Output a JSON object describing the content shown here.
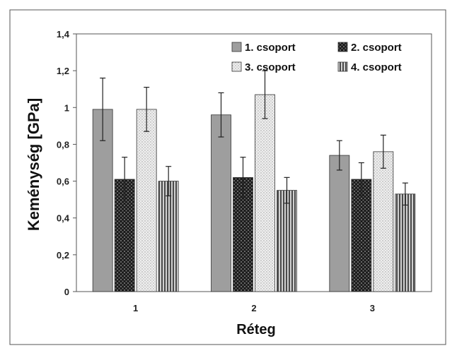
{
  "chart_data": {
    "type": "bar",
    "title": "",
    "xlabel": "Réteg",
    "ylabel": "Keménység [GPa]",
    "categories": [
      "1",
      "2",
      "3"
    ],
    "ylim": [
      0,
      1.4
    ],
    "yticks": [
      "0",
      "0,2",
      "0,4",
      "0,6",
      "0,8",
      "1",
      "1,2",
      "1,4"
    ],
    "ytick_values": [
      0,
      0.2,
      0.4,
      0.6,
      0.8,
      1.0,
      1.2,
      1.4
    ],
    "grid": false,
    "legend_position": "top-right",
    "series": [
      {
        "name": "1. csoport",
        "values": [
          0.99,
          0.96,
          0.74
        ],
        "errors": [
          0.17,
          0.12,
          0.08
        ],
        "pattern": "solid-gray"
      },
      {
        "name": "2. csoport",
        "values": [
          0.61,
          0.62,
          0.61
        ],
        "errors": [
          0.12,
          0.11,
          0.09
        ],
        "pattern": "dark-checker"
      },
      {
        "name": "3. csoport",
        "values": [
          0.99,
          1.07,
          0.76
        ],
        "errors": [
          0.12,
          0.13,
          0.09
        ],
        "pattern": "light-dots"
      },
      {
        "name": "4. csoport",
        "values": [
          0.6,
          0.55,
          0.53
        ],
        "errors": [
          0.08,
          0.07,
          0.06
        ],
        "pattern": "vertical-stripes"
      }
    ]
  }
}
